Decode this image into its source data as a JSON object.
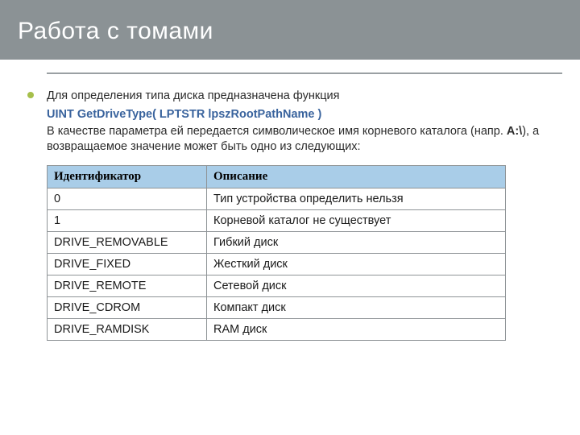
{
  "slide": {
    "title": "Работа с томами",
    "bullet_color": "#a6bf4b",
    "title_bg": "#8b9295",
    "title_color": "#ffffff",
    "rule_color": "#9aa0a3"
  },
  "text": {
    "line1": "Для определения типа диска предназначена функция",
    "signature": "UINT GetDriveType( LPTSTR lpszRootPathName )",
    "line2a": "В качестве параметра ей передается символическое имя корневого каталога (напр. ",
    "line2b_bold": "A:\\",
    "line2c": "), а возвращаемое значение может быть одно из следующих:",
    "sig_color": "#39639d"
  },
  "table": {
    "header_bg": "#a9cde8",
    "border_color": "#8f9497",
    "columns": [
      "Идентификатор",
      "Описание"
    ],
    "rows": [
      [
        "0",
        "Тип устройства определить нельзя"
      ],
      [
        "1",
        "Корневой каталог не существует"
      ],
      [
        "DRIVE_REMOVABLE",
        "Гибкий диск"
      ],
      [
        "DRIVE_FIXED",
        "Жесткий диск"
      ],
      [
        "DRIVE_REMOTE",
        "Сетевой диск"
      ],
      [
        "DRIVE_CDROM",
        "Компакт диск"
      ],
      [
        "DRIVE_RAMDISK",
        "RAM диск"
      ]
    ]
  }
}
